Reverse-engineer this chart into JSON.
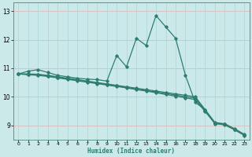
{
  "xlabel": "Humidex (Indice chaleur)",
  "xlim": [
    -0.5,
    23.5
  ],
  "ylim": [
    8.5,
    13.3
  ],
  "xticks": [
    0,
    1,
    2,
    3,
    4,
    5,
    6,
    7,
    8,
    9,
    10,
    11,
    12,
    13,
    14,
    15,
    16,
    17,
    18,
    19,
    20,
    21,
    22,
    23
  ],
  "yticks": [
    9,
    10,
    11,
    12,
    13
  ],
  "bg_color": "#cce9ea",
  "line_color": "#2e7d6e",
  "grid_color_pink": "#deb8b8",
  "grid_color_cyan": "#b0d8d8",
  "lines": [
    {
      "x": [
        0,
        1,
        2,
        3,
        4,
        5,
        6,
        7,
        8,
        9,
        10,
        11,
        12,
        13,
        14,
        15,
        16,
        17,
        18,
        19,
        20,
        21,
        22,
        23
      ],
      "y": [
        10.8,
        10.9,
        10.95,
        10.85,
        10.75,
        10.7,
        10.65,
        10.62,
        10.6,
        10.55,
        11.45,
        11.05,
        12.05,
        11.8,
        12.85,
        12.45,
        12.05,
        10.75,
        9.8,
        9.55,
        9.05,
        9.05,
        8.85,
        8.65
      ]
    },
    {
      "x": [
        0,
        1,
        2,
        3,
        4,
        5,
        6,
        7,
        8,
        9,
        10,
        11,
        12,
        13,
        14,
        15,
        16,
        17,
        18,
        19,
        20,
        21,
        22,
        23
      ],
      "y": [
        10.8,
        10.8,
        10.79,
        10.75,
        10.7,
        10.65,
        10.6,
        10.55,
        10.5,
        10.45,
        10.4,
        10.35,
        10.3,
        10.25,
        10.2,
        10.15,
        10.1,
        10.05,
        10.0,
        9.55,
        9.1,
        9.05,
        8.88,
        8.68
      ]
    },
    {
      "x": [
        0,
        1,
        2,
        3,
        4,
        5,
        6,
        7,
        8,
        9,
        10,
        11,
        12,
        13,
        14,
        15,
        16,
        17,
        18,
        19,
        20,
        21,
        22,
        23
      ],
      "y": [
        10.8,
        10.79,
        10.77,
        10.73,
        10.68,
        10.63,
        10.58,
        10.53,
        10.48,
        10.43,
        10.38,
        10.33,
        10.27,
        10.22,
        10.17,
        10.11,
        10.06,
        10.0,
        9.95,
        9.52,
        9.08,
        9.03,
        8.86,
        8.66
      ]
    },
    {
      "x": [
        0,
        1,
        2,
        3,
        4,
        5,
        6,
        7,
        8,
        9,
        10,
        11,
        12,
        13,
        14,
        15,
        16,
        17,
        18,
        19,
        20,
        21,
        22,
        23
      ],
      "y": [
        10.8,
        10.77,
        10.75,
        10.71,
        10.66,
        10.61,
        10.56,
        10.51,
        10.46,
        10.41,
        10.36,
        10.31,
        10.25,
        10.2,
        10.14,
        10.08,
        10.02,
        9.96,
        9.9,
        9.48,
        9.06,
        9.01,
        8.84,
        8.64
      ]
    }
  ]
}
